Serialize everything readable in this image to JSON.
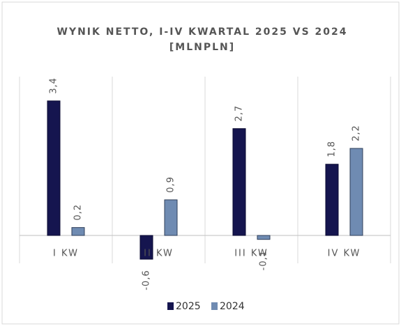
{
  "chart_data": {
    "type": "bar",
    "title": "WYNIK NETTO, I-IV KWARTAL 2025 VS 2024",
    "subtitle": "[MLNPLN]",
    "categories": [
      "I KW",
      "II KW",
      "III KW",
      "IV KW"
    ],
    "series": [
      {
        "name": "2025",
        "color": "#15154f",
        "values": [
          3.4,
          -0.6,
          2.7,
          1.8
        ],
        "value_labels": [
          "3,4",
          "-0,6",
          "2,7",
          "1,8"
        ]
      },
      {
        "name": "2024",
        "color": "#6f8bb2",
        "values": [
          0.2,
          0.9,
          -0.1,
          2.2
        ],
        "value_labels": [
          "0,2",
          "0,9",
          "-0,1",
          "2,2"
        ]
      }
    ],
    "legend": "bottom"
  }
}
